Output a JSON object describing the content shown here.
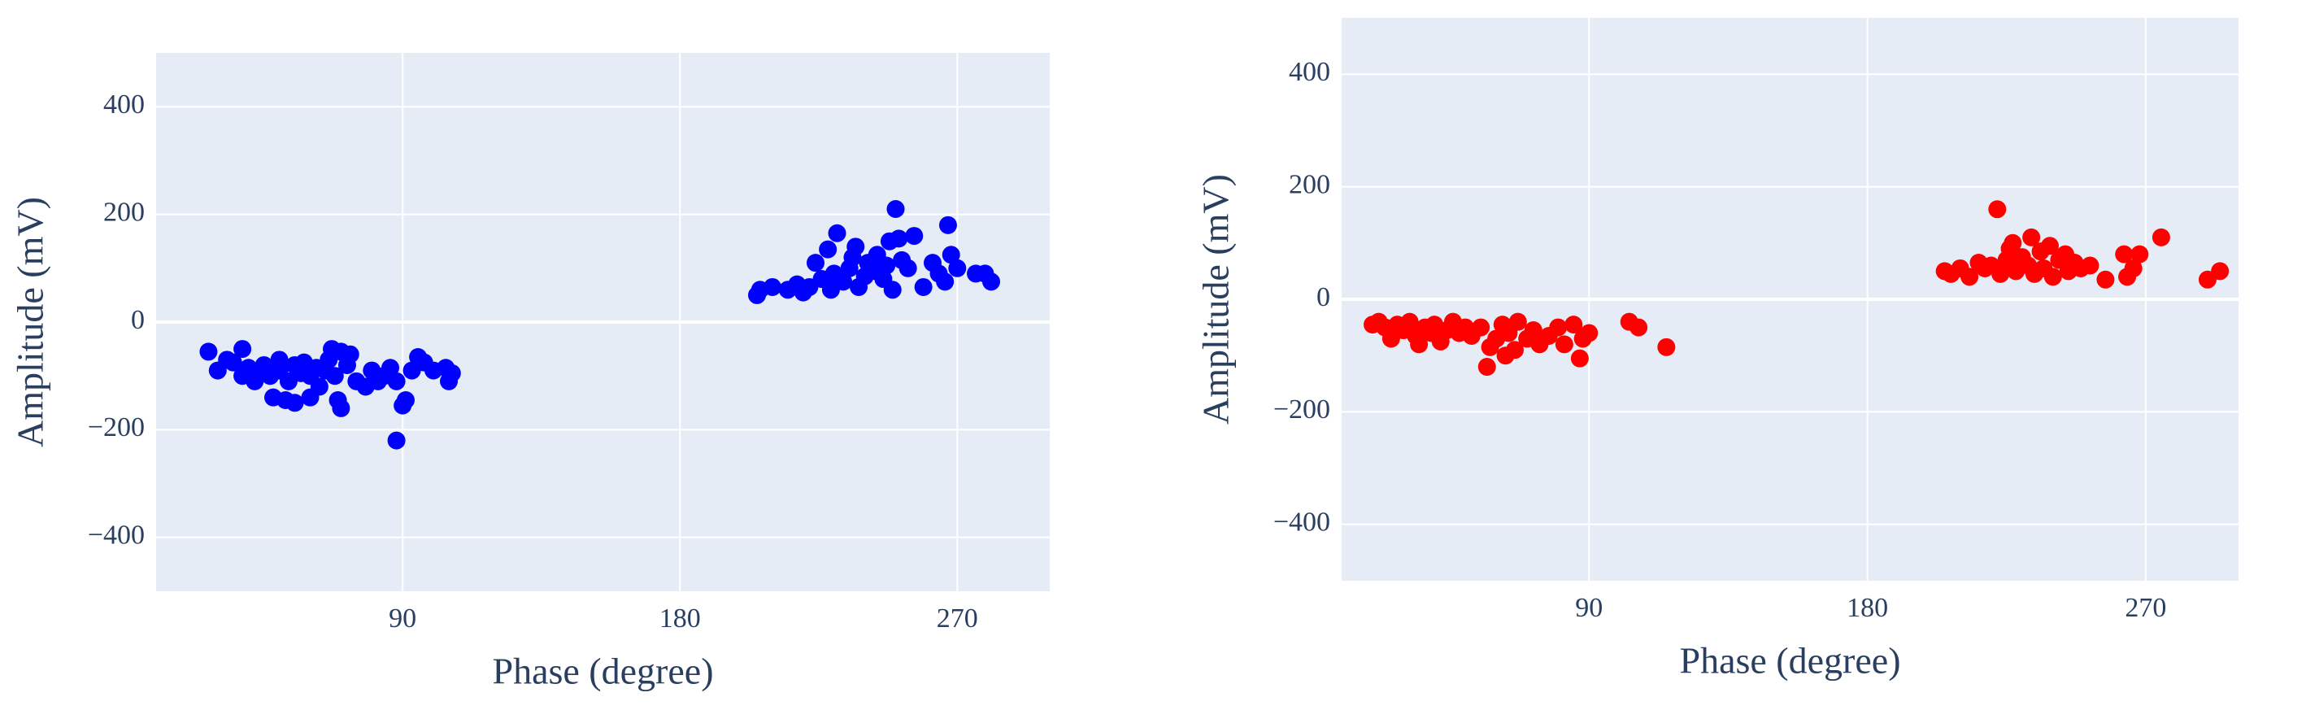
{
  "chart_data": [
    {
      "type": "scatter",
      "color": "#0000ff",
      "xlabel": "Phase (degree)",
      "ylabel": "Amplitude (mV)",
      "xlim": [
        10,
        300
      ],
      "ylim": [
        -500,
        500
      ],
      "xticks": [
        90,
        180,
        270
      ],
      "yticks": [
        {
          "value": -400,
          "label": "−400"
        },
        {
          "value": -200,
          "label": "−200"
        },
        0,
        200,
        400
      ],
      "grid": true,
      "x": [
        27,
        30,
        33,
        35,
        38,
        38,
        40,
        42,
        43,
        45,
        47,
        48,
        50,
        50,
        52,
        53,
        55,
        55,
        57,
        58,
        60,
        60,
        62,
        63,
        65,
        66,
        67,
        68,
        69,
        70,
        70,
        72,
        73,
        75,
        78,
        80,
        82,
        84,
        86,
        88,
        88,
        90,
        91,
        93,
        95,
        97,
        100,
        104,
        105,
        106,
        205,
        206,
        210,
        215,
        218,
        220,
        222,
        224,
        226,
        228,
        229,
        230,
        231,
        233,
        235,
        236,
        237,
        238,
        240,
        241,
        243,
        244,
        246,
        247,
        248,
        249,
        250,
        251,
        252,
        254,
        256,
        259,
        262,
        264,
        266,
        267,
        268,
        270,
        276,
        279,
        281
      ],
      "values": [
        -55,
        -90,
        -70,
        -75,
        -50,
        -100,
        -85,
        -110,
        -95,
        -80,
        -100,
        -140,
        -70,
        -90,
        -145,
        -110,
        -80,
        -150,
        -95,
        -75,
        -100,
        -140,
        -85,
        -120,
        -90,
        -70,
        -50,
        -100,
        -145,
        -55,
        -160,
        -80,
        -60,
        -110,
        -120,
        -90,
        -110,
        -100,
        -85,
        -220,
        -110,
        -155,
        -145,
        -90,
        -65,
        -75,
        -90,
        -85,
        -110,
        -95,
        50,
        60,
        65,
        60,
        70,
        55,
        65,
        110,
        80,
        135,
        60,
        90,
        165,
        75,
        100,
        120,
        140,
        65,
        85,
        110,
        95,
        125,
        80,
        105,
        150,
        60,
        210,
        155,
        115,
        100,
        160,
        65,
        110,
        90,
        75,
        180,
        125,
        100,
        90,
        90,
        75
      ]
    },
    {
      "type": "scatter",
      "color": "#ff0000",
      "xlabel": "Phase (degree)",
      "ylabel": "Amplitude (mV)",
      "xlim": [
        10,
        300
      ],
      "ylim": [
        -500,
        500
      ],
      "xticks": [
        90,
        180,
        270
      ],
      "yticks": [
        {
          "value": -400,
          "label": "−400"
        },
        {
          "value": -200,
          "label": "−200"
        },
        0,
        200,
        400
      ],
      "grid": true,
      "x": [
        20,
        22,
        24,
        26,
        28,
        30,
        32,
        34,
        35,
        37,
        39,
        40,
        42,
        44,
        46,
        48,
        50,
        52,
        55,
        57,
        58,
        60,
        62,
        63,
        64,
        66,
        67,
        70,
        72,
        74,
        77,
        80,
        82,
        85,
        87,
        88,
        90,
        103,
        106,
        115,
        205,
        207,
        210,
        213,
        216,
        218,
        220,
        222,
        223,
        225,
        226,
        227,
        228,
        230,
        232,
        233,
        234,
        236,
        237,
        239,
        240,
        242,
        244,
        245,
        247,
        249,
        252,
        257,
        263,
        264,
        266,
        268,
        275,
        290,
        294
      ],
      "values": [
        -45,
        -40,
        -50,
        -70,
        -45,
        -55,
        -40,
        -65,
        -80,
        -50,
        -60,
        -45,
        -75,
        -55,
        -40,
        -60,
        -50,
        -65,
        -50,
        -120,
        -85,
        -70,
        -45,
        -100,
        -60,
        -90,
        -40,
        -70,
        -55,
        -80,
        -65,
        -50,
        -80,
        -45,
        -105,
        -70,
        -60,
        -40,
        -50,
        -85,
        50,
        45,
        55,
        40,
        65,
        55,
        60,
        160,
        45,
        70,
        90,
        100,
        50,
        75,
        60,
        110,
        45,
        85,
        55,
        95,
        40,
        70,
        80,
        50,
        65,
        55,
        60,
        35,
        80,
        40,
        55,
        80,
        110,
        35,
        50
      ]
    }
  ]
}
